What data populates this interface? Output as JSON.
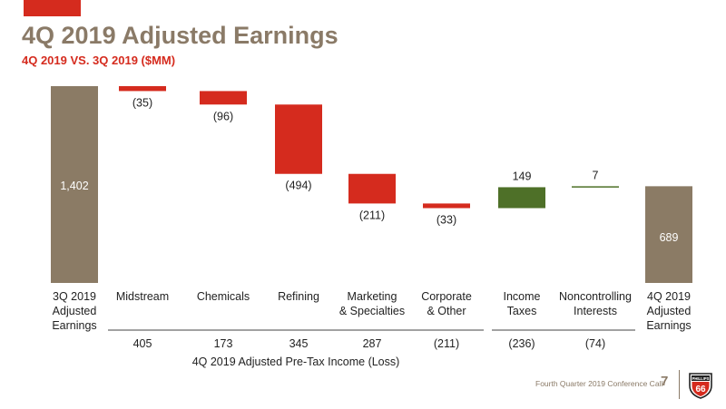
{
  "slide": {
    "title": "4Q 2019 Adjusted Earnings",
    "subtitle": "4Q 2019 VS. 3Q 2019 ($MM)",
    "footer": "Fourth Quarter 2019 Conference Call",
    "page_number": "7",
    "logo_text": "PHILLIPS",
    "logo_number": "66"
  },
  "colors": {
    "total": "#8b7b65",
    "decrease": "#d52b1e",
    "increase": "#4e7028",
    "text": "#222222",
    "accent": "#d52b1e",
    "brand_gray": "#8a7a67"
  },
  "chart_data": {
    "type": "waterfall",
    "categories": [
      "3Q 2019 Adjusted Earnings",
      "Midstream",
      "Chemicals",
      "Refining",
      "Marketing & Specialties",
      "Corporate & Other",
      "Income Taxes",
      "Noncontrolling Interests",
      "4Q 2019 Adjusted Earnings"
    ],
    "bars": [
      {
        "label_lines": [
          "3Q 2019",
          "Adjusted",
          "Earnings"
        ],
        "kind": "total",
        "value": 1402,
        "value_label": "1,402"
      },
      {
        "label_lines": [
          "Midstream"
        ],
        "kind": "decrease",
        "value": -35,
        "value_label": "(35)"
      },
      {
        "label_lines": [
          "Chemicals"
        ],
        "kind": "decrease",
        "value": -96,
        "value_label": "(96)"
      },
      {
        "label_lines": [
          "Refining"
        ],
        "kind": "decrease",
        "value": -494,
        "value_label": "(494)"
      },
      {
        "label_lines": [
          "Marketing",
          "& Specialties"
        ],
        "kind": "decrease",
        "value": -211,
        "value_label": "(211)"
      },
      {
        "label_lines": [
          "Corporate",
          "& Other"
        ],
        "kind": "decrease",
        "value": -33,
        "value_label": "(33)"
      },
      {
        "label_lines": [
          "Income",
          "Taxes"
        ],
        "kind": "increase",
        "value": 149,
        "value_label": "149"
      },
      {
        "label_lines": [
          "Noncontrolling",
          "Interests"
        ],
        "kind": "increase",
        "value": 7,
        "value_label": "7"
      },
      {
        "label_lines": [
          "4Q 2019",
          "Adjusted",
          "Earnings"
        ],
        "kind": "total",
        "value": 689,
        "value_label": "689"
      }
    ],
    "pretax_row": {
      "values": [
        "405",
        "173",
        "345",
        "287",
        "(211)",
        "(236)",
        "(74)"
      ],
      "label": "4Q 2019 Adjusted Pre-Tax Income (Loss)"
    },
    "ylim": [
      0,
      1402
    ],
    "grid": false,
    "legend": "none"
  }
}
